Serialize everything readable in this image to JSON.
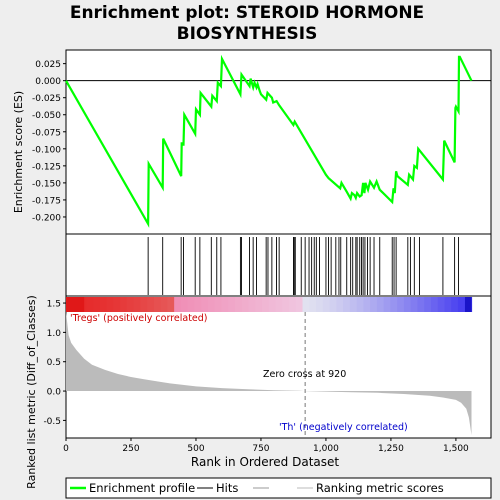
{
  "chart_data": {
    "type": "line",
    "title": "Enrichment plot: STEROID HORMONE BIOSYNTHESIS",
    "title_lines": [
      "Enrichment plot: STEROID HORMONE",
      "BIOSYNTHESIS"
    ],
    "colors": {
      "enrichment": "#00ff00",
      "hits": "#000000",
      "metric_fill": "#bbbbbb",
      "zero_cross_line": "#777777",
      "positive_label": "#cc0000",
      "negative_label": "#0000cc",
      "panel_bg": "#ffffff",
      "page_bg": "#eeeeee"
    },
    "top_panel": {
      "ylabel": "Enrichment score (ES)",
      "ylim": [
        -0.225,
        0.045
      ],
      "yticks": [
        0.025,
        0.0,
        -0.025,
        -0.05,
        -0.075,
        -0.1,
        -0.125,
        -0.15,
        -0.175,
        -0.2
      ],
      "ytick_labels": [
        "0.025",
        "0.000",
        "-0.025",
        "-0.050",
        "-0.075",
        "-0.100",
        "-0.125",
        "-0.150",
        "-0.175",
        "-0.200"
      ],
      "es_curve": {
        "x": [
          0,
          316,
          318,
          372,
          374,
          443,
          445,
          448,
          450,
          452,
          455,
          497,
          500,
          515,
          518,
          559,
          563,
          580,
          584,
          596,
          600,
          671,
          675,
          706,
          710,
          720,
          725,
          733,
          737,
          745,
          750,
          770,
          775,
          792,
          797,
          810,
          820,
          875,
          880,
          1000,
          1010,
          1055,
          1060,
          1080,
          1095,
          1100,
          1110,
          1115,
          1120,
          1130,
          1137,
          1143,
          1148,
          1152,
          1162,
          1170,
          1185,
          1195,
          1207,
          1255,
          1260,
          1265,
          1270,
          1275,
          1315,
          1320,
          1335,
          1340,
          1350,
          1355,
          1450,
          1455,
          1495,
          1498,
          1500,
          1510,
          1512,
          1515,
          1560
        ],
        "y": [
          0.0,
          -0.21,
          -0.122,
          -0.157,
          -0.085,
          -0.14,
          -0.092,
          -0.092,
          -0.094,
          -0.094,
          -0.05,
          -0.078,
          -0.042,
          -0.05,
          -0.018,
          -0.038,
          -0.022,
          -0.03,
          -0.003,
          -0.008,
          0.032,
          -0.02,
          0.009,
          -0.008,
          0.003,
          -0.01,
          -0.003,
          -0.01,
          -0.005,
          -0.015,
          -0.02,
          -0.028,
          -0.018,
          -0.025,
          -0.032,
          -0.03,
          -0.036,
          -0.065,
          -0.06,
          -0.138,
          -0.143,
          -0.158,
          -0.15,
          -0.163,
          -0.173,
          -0.165,
          -0.168,
          -0.172,
          -0.165,
          -0.17,
          -0.168,
          -0.15,
          -0.165,
          -0.15,
          -0.16,
          -0.148,
          -0.157,
          -0.148,
          -0.16,
          -0.178,
          -0.158,
          -0.165,
          -0.133,
          -0.14,
          -0.153,
          -0.138,
          -0.145,
          -0.125,
          -0.128,
          -0.1,
          -0.145,
          -0.088,
          -0.12,
          -0.04,
          -0.038,
          -0.045,
          0.035,
          0.035,
          0.0
        ]
      }
    },
    "hits_panel": {
      "positions": [
        316,
        372,
        443,
        452,
        497,
        515,
        559,
        580,
        596,
        671,
        675,
        706,
        720,
        733,
        770,
        777,
        792,
        810,
        820,
        875,
        878,
        882,
        905,
        920,
        935,
        945,
        955,
        963,
        975,
        1000,
        1010,
        1020,
        1038,
        1050,
        1057,
        1080,
        1095,
        1103,
        1115,
        1120,
        1130,
        1137,
        1143,
        1150,
        1160,
        1170,
        1185,
        1207,
        1255,
        1262,
        1270,
        1315,
        1325,
        1340,
        1360,
        1450,
        1495,
        1510
      ]
    },
    "color_bar": {
      "positive_label": "'Tregs' (positively correlated)",
      "negative_label": "'Th' (negatively correlated)"
    },
    "bottom_panel": {
      "ylabel": "Ranked list metric (Diff_of_Classes)",
      "xlabel": "Rank in Ordered Dataset",
      "ylim": [
        -0.8,
        1.62
      ],
      "yticks": [
        1.5,
        1.0,
        0.5,
        0.0,
        -0.5
      ],
      "ytick_labels": [
        "1.5",
        "1.0",
        "0.5",
        "0.0",
        "-0.5"
      ],
      "zero_cross": 920,
      "zero_cross_label": "Zero cross at 920",
      "metric": {
        "x": [
          0,
          10,
          20,
          40,
          70,
          100,
          150,
          200,
          250,
          300,
          400,
          500,
          600,
          700,
          800,
          900,
          920,
          1000,
          1100,
          1200,
          1300,
          1400,
          1450,
          1500,
          1520,
          1540,
          1550,
          1560
        ],
        "y": [
          1.35,
          0.95,
          0.82,
          0.7,
          0.55,
          0.45,
          0.36,
          0.29,
          0.24,
          0.2,
          0.13,
          0.08,
          0.05,
          0.03,
          0.015,
          0.005,
          0.0,
          -0.01,
          -0.02,
          -0.03,
          -0.05,
          -0.08,
          -0.11,
          -0.15,
          -0.2,
          -0.3,
          -0.45,
          -0.75
        ]
      }
    },
    "xaxis": {
      "xlim": [
        0,
        1635
      ],
      "xticks": [
        0,
        250,
        500,
        750,
        1000,
        1250,
        1500
      ],
      "xtick_labels": [
        "0",
        "250",
        "500",
        "750",
        "1,000",
        "1,250",
        "1,500"
      ],
      "n_ranks": 1560
    },
    "legend": {
      "items": [
        {
          "label": "Enrichment profile",
          "color": "#00ff00",
          "kind": "line-thick"
        },
        {
          "label": "Hits",
          "color": "#000000",
          "kind": "line"
        },
        {
          "label": "",
          "color": "#999999",
          "kind": "line"
        },
        {
          "label": "Ranking metric scores",
          "color": "#bbbbbb",
          "kind": "line"
        }
      ]
    }
  }
}
